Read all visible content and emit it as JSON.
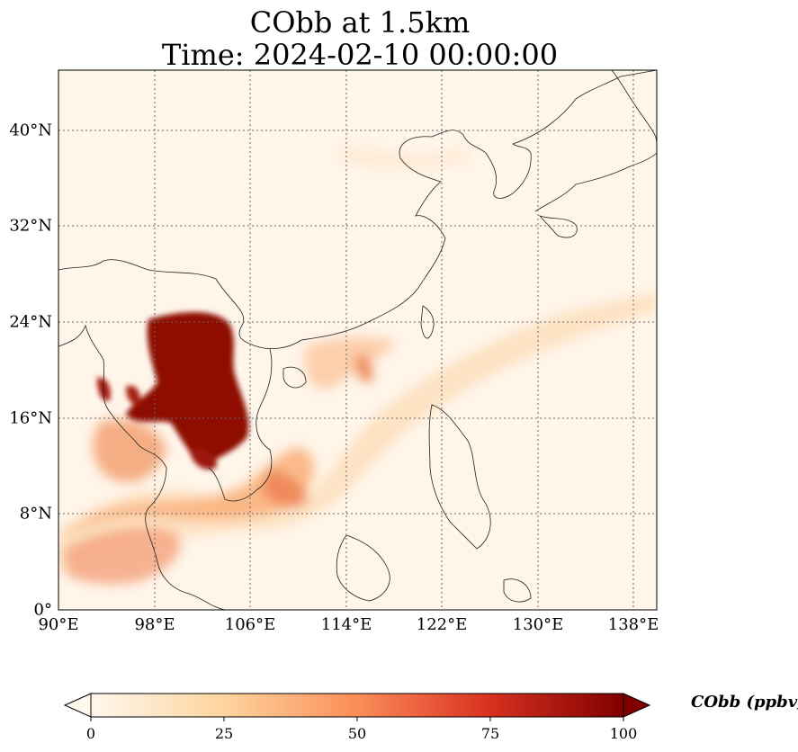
{
  "title": {
    "line1": "CObb at 1.5km",
    "line2": "Time: 2024-02-10 00:00:00"
  },
  "map": {
    "lat_labels": [
      "0°",
      "8°N",
      "16°N",
      "24°N",
      "32°N",
      "40°N"
    ],
    "lon_labels": [
      "90°E",
      "98°E",
      "106°E",
      "114°E",
      "122°E",
      "130°E",
      "138°E"
    ],
    "extent": {
      "lon_min": 90,
      "lon_max": 140,
      "lat_min": 0,
      "lat_max": 45
    },
    "gridlines": "dotted",
    "colormap": "OrRd"
  },
  "colorbar": {
    "label": "CObb (ppbv)",
    "ticks": [
      "0",
      "25",
      "50",
      "75",
      "100"
    ],
    "range": [
      0,
      100
    ],
    "extend": "both",
    "colors": [
      "#fff7ec",
      "#fdd49e",
      "#fc8d59",
      "#d7301f",
      "#7f0000"
    ]
  }
}
